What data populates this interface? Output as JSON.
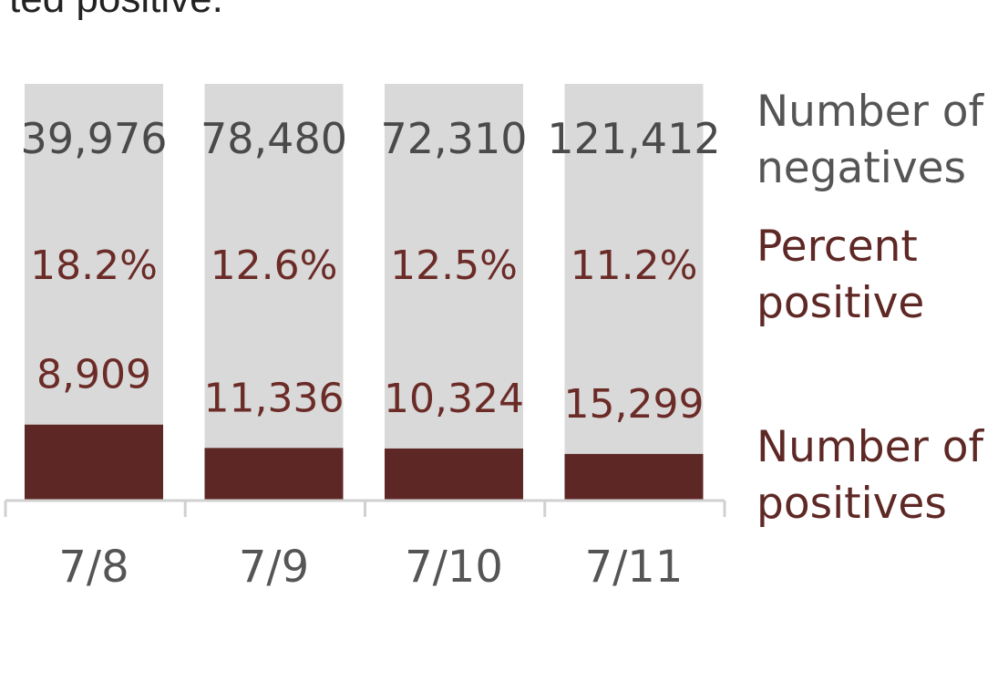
{
  "header_fragment": "ted positive.",
  "colors": {
    "negative_fill": "#d9d9d9",
    "positive_fill": "#5c2724",
    "negative_text": "#4a4a4a",
    "percent_text": "#6b2b27",
    "positive_text": "#6b2b27",
    "axis": "#d0d0d0",
    "tick_text": "#555555"
  },
  "labels": {
    "negatives": [
      "Number of",
      "negatives"
    ],
    "percent": [
      "Percent",
      "positive"
    ],
    "positives": [
      "Number of",
      "positives"
    ]
  },
  "chart_data": {
    "type": "bar",
    "stacked": true,
    "categories": [
      "7/8",
      "7/9",
      "7/10",
      "7/11"
    ],
    "series": [
      {
        "name": "Number of positives",
        "values": [
          8909,
          11336,
          10324,
          15299
        ],
        "labels": [
          "8,909",
          "11,336",
          "10,324",
          "15,299"
        ]
      },
      {
        "name": "Number of negatives",
        "values": [
          39976,
          78480,
          72310,
          121412
        ],
        "labels": [
          "39,976",
          "78,480",
          "72,310",
          "121,412"
        ]
      }
    ],
    "percent_positive": {
      "name": "Percent positive",
      "values": [
        18.2,
        12.6,
        12.5,
        11.2
      ],
      "labels": [
        "18.2%",
        "12.6%",
        "12.5%",
        "11.2%"
      ]
    },
    "normalized": true,
    "legend": "right",
    "grid": false
  }
}
